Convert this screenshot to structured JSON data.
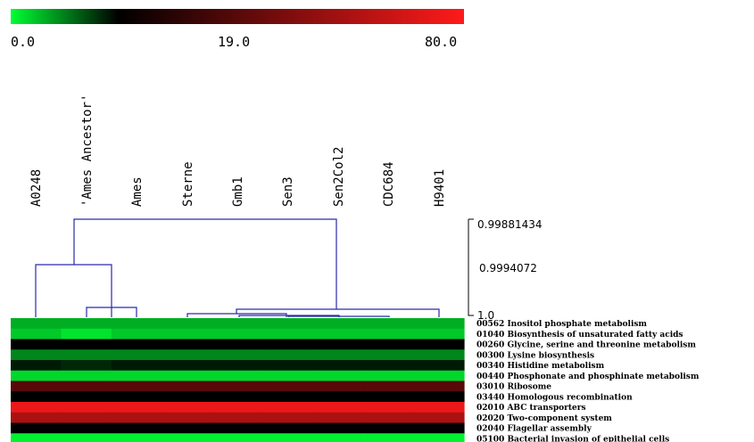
{
  "chart_data": {
    "type": "heatmap",
    "colorbar": {
      "ticks": [
        "0.0",
        "19.0",
        "80.0"
      ],
      "tick_values": [
        0,
        19,
        80
      ],
      "colors": [
        "#00ff33",
        "#000000",
        "#ff1a1a"
      ]
    },
    "columns": [
      "A0248",
      "'Ames Ancestor'",
      "Ames",
      "Sterne",
      "Gmb1",
      "Sen3",
      "Sen2Col2",
      "CDC684",
      "H9401"
    ],
    "dendrogram_scale": [
      "0.99881434",
      "0.9994072",
      "1.0"
    ],
    "rows": [
      "00562 Inositol phosphate metabolism",
      "01040 Biosynthesis of unsaturated fatty acids",
      "00260 Glycine, serine and threonine metabolism",
      "00300 Lysine biosynthesis",
      "00340 Histidine metabolism",
      "00440 Phosphonate and phosphinate metabolism",
      "03010 Ribosome",
      "03440 Homologous recombination",
      "02010 ABC transporters",
      "02020 Two-component system",
      "02040 Flagellar assembly",
      "05100 Bacterial invasion of epithelial cells"
    ],
    "values": [
      [
        6,
        6,
        6,
        6,
        6,
        6,
        6,
        6,
        6
      ],
      [
        4,
        2,
        4,
        4,
        4,
        4,
        4,
        4,
        4
      ],
      [
        19,
        19,
        19,
        19,
        19,
        19,
        19,
        19,
        19
      ],
      [
        9,
        9,
        9,
        9,
        9,
        9,
        9,
        9,
        9
      ],
      [
        17,
        16,
        17,
        17,
        17,
        17,
        17,
        17,
        17
      ],
      [
        3,
        3,
        3,
        3,
        3,
        3,
        3,
        3,
        3
      ],
      [
        40,
        40,
        40,
        40,
        40,
        40,
        40,
        40,
        40
      ],
      [
        19,
        19,
        19,
        19,
        19,
        19,
        19,
        19,
        19
      ],
      [
        75,
        75,
        75,
        75,
        75,
        75,
        75,
        75,
        75
      ],
      [
        60,
        60,
        60,
        60,
        60,
        60,
        60,
        60,
        60
      ],
      [
        19,
        19,
        19,
        19,
        19,
        19,
        19,
        19,
        19
      ],
      [
        1,
        1,
        1,
        1,
        1,
        1,
        1,
        1,
        1
      ]
    ],
    "dendrogram_color": "#2a2aaa"
  }
}
